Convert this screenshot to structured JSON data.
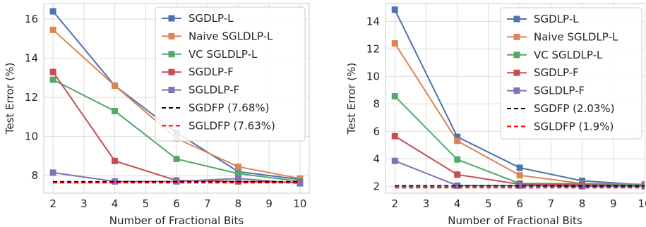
{
  "chart_data": [
    {
      "type": "line",
      "xlabel": "Number of Fractional Bits",
      "ylabel": "Test Error (%)",
      "xlim": [
        1.7,
        10.3
      ],
      "ylim": [
        7.1,
        16.8
      ],
      "xticks": [
        2,
        3,
        4,
        5,
        6,
        7,
        8,
        9,
        10
      ],
      "yticks": [
        8,
        10,
        12,
        14,
        16
      ],
      "x": [
        2,
        4,
        6,
        8,
        10
      ],
      "grid": true,
      "legend_position": "top-right",
      "series": [
        {
          "name": "SGDLP-L",
          "color": "#4c72b0",
          "style": "line-marker",
          "values": [
            16.4,
            12.6,
            10.2,
            8.2,
            7.8
          ]
        },
        {
          "name": "Naive SGLDLP-L",
          "color": "#dd8452",
          "style": "line-marker",
          "values": [
            15.45,
            12.6,
            9.9,
            8.45,
            7.85
          ]
        },
        {
          "name": "VC SGLDLP-L",
          "color": "#55a868",
          "style": "line-marker",
          "values": [
            12.9,
            11.3,
            8.85,
            8.1,
            7.7
          ]
        },
        {
          "name": "SGDLP-F",
          "color": "#c44e52",
          "style": "line-marker",
          "values": [
            13.3,
            8.75,
            7.75,
            7.7,
            7.65
          ]
        },
        {
          "name": "SGLDLP-F",
          "color": "#8172b3",
          "style": "line-marker",
          "values": [
            8.15,
            7.7,
            7.7,
            7.85,
            7.6
          ]
        },
        {
          "name": "SGDFP (7.68%)",
          "color": "#000000",
          "style": "dashed",
          "constant": 7.68
        },
        {
          "name": "SGLDFP (7.63%)",
          "color": "#ff0000",
          "style": "dashed",
          "constant": 7.63
        }
      ]
    },
    {
      "type": "line",
      "xlabel": "Number of Fractional Bits",
      "ylabel": "Test Error (%)",
      "xlim": [
        1.7,
        10.0
      ],
      "ylim": [
        1.5,
        15.3
      ],
      "xticks": [
        2,
        3,
        4,
        5,
        6,
        7,
        8,
        9,
        10
      ],
      "yticks": [
        2,
        4,
        6,
        8,
        10,
        12,
        14
      ],
      "x": [
        2,
        4,
        6,
        8,
        10
      ],
      "grid": true,
      "legend_position": "top-right",
      "series": [
        {
          "name": "SGDLP-L",
          "color": "#4c72b0",
          "style": "line-marker",
          "values": [
            14.85,
            5.6,
            3.35,
            2.4,
            2.1
          ]
        },
        {
          "name": "Naive SGLDLP-L",
          "color": "#dd8452",
          "style": "line-marker",
          "values": [
            12.4,
            5.3,
            2.8,
            2.2,
            2.15
          ]
        },
        {
          "name": "VC SGLDLP-L",
          "color": "#55a868",
          "style": "line-marker",
          "values": [
            8.55,
            3.95,
            2.2,
            2.2,
            2.1
          ]
        },
        {
          "name": "SGDLP-F",
          "color": "#c44e52",
          "style": "line-marker",
          "values": [
            5.65,
            2.85,
            2.15,
            2.1,
            2.05
          ]
        },
        {
          "name": "SGLDLP-F",
          "color": "#8172b3",
          "style": "line-marker",
          "values": [
            3.85,
            2.05,
            2.05,
            2.0,
            2.0
          ]
        },
        {
          "name": "SGDFP (2.03%)",
          "color": "#000000",
          "style": "dashed",
          "constant": 2.03
        },
        {
          "name": "SGLDFP (1.9%)",
          "color": "#ff0000",
          "style": "dashed",
          "constant": 1.9
        }
      ]
    }
  ]
}
